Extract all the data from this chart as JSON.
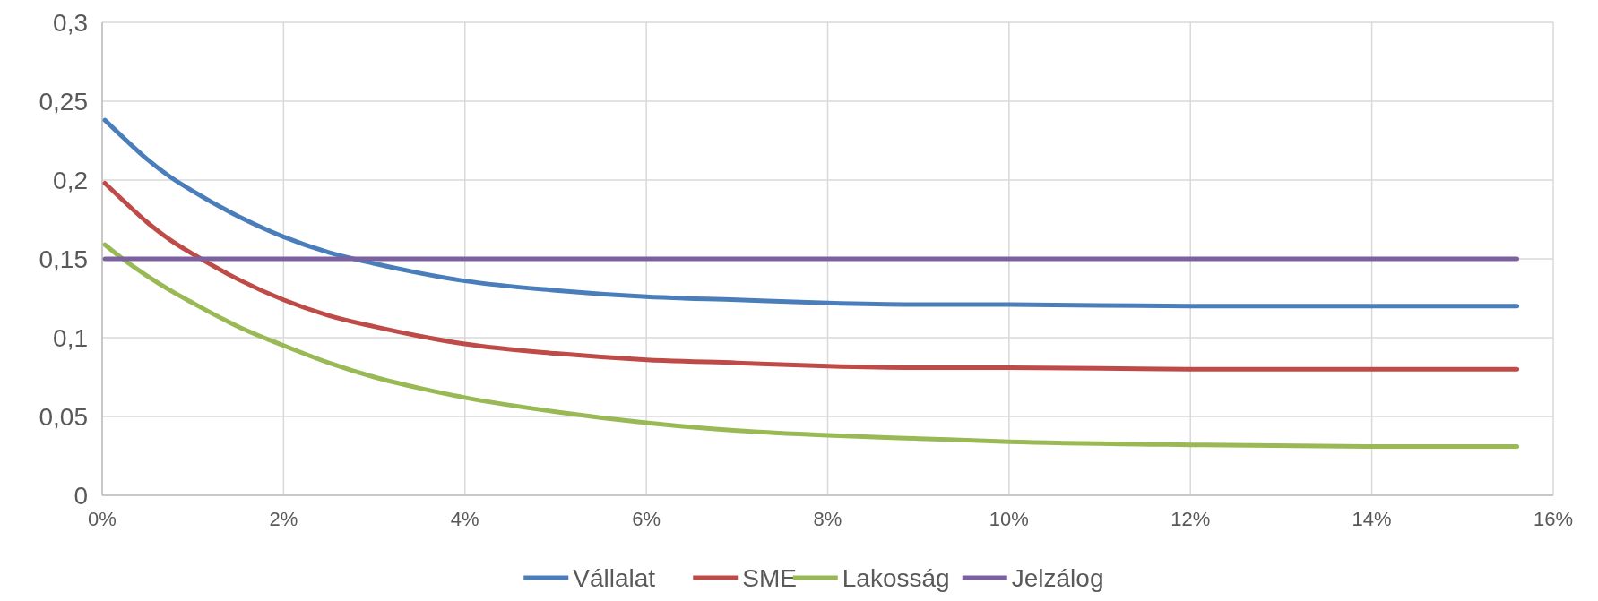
{
  "chart_data": {
    "type": "line",
    "x": [
      0.03,
      0.25,
      0.5,
      0.75,
      1,
      1.5,
      2,
      2.5,
      3,
      3.5,
      4,
      5,
      6,
      7,
      8,
      9,
      10,
      12,
      14,
      15.6
    ],
    "series": [
      {
        "name": "Vállalat",
        "color": "#4a7ebb",
        "values": [
          0.238,
          0.226,
          0.213,
          0.202,
          0.193,
          0.177,
          0.164,
          0.154,
          0.147,
          0.141,
          0.136,
          0.13,
          0.126,
          0.124,
          0.122,
          0.121,
          0.121,
          0.12,
          0.12,
          0.12
        ]
      },
      {
        "name": "SME",
        "color": "#be4b48",
        "values": [
          0.198,
          0.186,
          0.173,
          0.162,
          0.153,
          0.137,
          0.124,
          0.114,
          0.107,
          0.101,
          0.096,
          0.09,
          0.086,
          0.084,
          0.082,
          0.081,
          0.081,
          0.08,
          0.08,
          0.08
        ]
      },
      {
        "name": "Lakosság",
        "color": "#98b954",
        "values": [
          0.159,
          0.149,
          0.139,
          0.13,
          0.122,
          0.107,
          0.095,
          0.084,
          0.075,
          0.068,
          0.062,
          0.053,
          0.046,
          0.041,
          0.038,
          0.036,
          0.034,
          0.032,
          0.031,
          0.031
        ]
      },
      {
        "name": "Jelzálog",
        "color": "#7d60a0",
        "values": [
          0.15,
          0.15,
          0.15,
          0.15,
          0.15,
          0.15,
          0.15,
          0.15,
          0.15,
          0.15,
          0.15,
          0.15,
          0.15,
          0.15,
          0.15,
          0.15,
          0.15,
          0.15,
          0.15,
          0.15
        ]
      }
    ],
    "xlim": [
      0,
      16
    ],
    "xticks": [
      {
        "value": 0,
        "label": "0%"
      },
      {
        "value": 2,
        "label": "2%"
      },
      {
        "value": 4,
        "label": "4%"
      },
      {
        "value": 6,
        "label": "6%"
      },
      {
        "value": 8,
        "label": "8%"
      },
      {
        "value": 10,
        "label": "10%"
      },
      {
        "value": 12,
        "label": "12%"
      },
      {
        "value": 14,
        "label": "14%"
      },
      {
        "value": 16,
        "label": "16%"
      }
    ],
    "ylim": [
      0,
      0.3
    ],
    "yticks": [
      0,
      {
        "value": 0.05,
        "label": "0,05"
      },
      {
        "value": 0.1,
        "label": "0,1"
      },
      {
        "value": 0.15,
        "label": "0,15"
      },
      {
        "value": 0.2,
        "label": "0,2"
      },
      {
        "value": 0.25,
        "label": "0,25"
      },
      {
        "value": 0.3,
        "label": "0,3"
      }
    ],
    "grid": true,
    "legend": "bottom",
    "marker": "none",
    "line_style": "solid"
  }
}
